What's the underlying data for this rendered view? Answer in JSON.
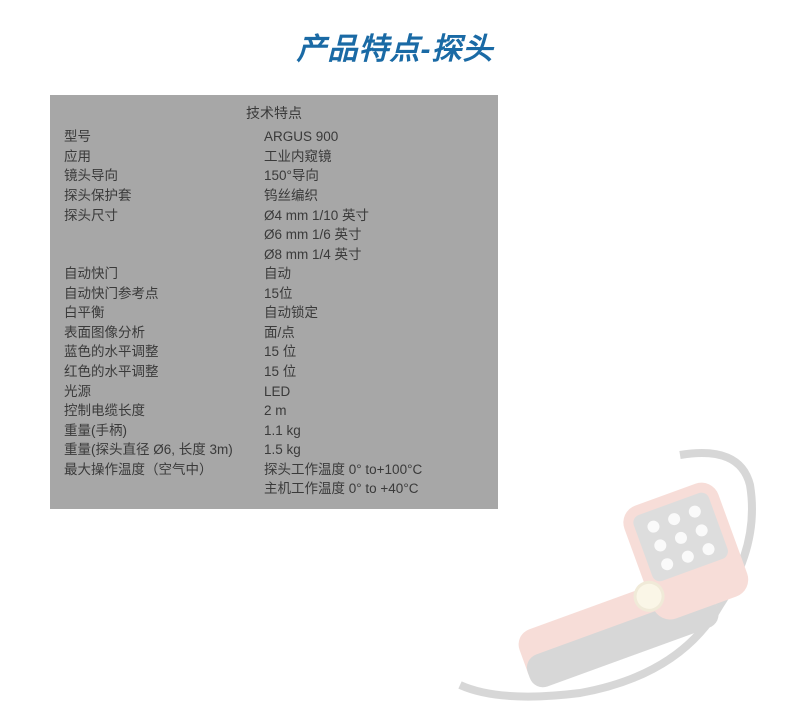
{
  "page_title": "产品特点-探头",
  "spec_title": "技术特点",
  "colors": {
    "title": "#1a6aa5",
    "box_bg": "#a7a7a7",
    "text": "#3a3a3a",
    "page_bg": "#ffffff"
  },
  "specs": [
    {
      "label": "型号",
      "value": "ARGUS 900"
    },
    {
      "label": "应用",
      "value": "工业内窥镜"
    },
    {
      "label": "镜头导向",
      "value": "150°导向"
    },
    {
      "label": "探头保护套",
      "value": "钨丝编织"
    },
    {
      "label": "探头尺寸",
      "value": "Ø4 mm 1/10 英寸"
    },
    {
      "label": "",
      "value": "Ø6 mm 1/6 英寸"
    },
    {
      "label": "",
      "value": "Ø8 mm 1/4 英寸"
    },
    {
      "label": "自动快门",
      "value": "自动"
    },
    {
      "label": "自动快门参考点",
      "value": "15位"
    },
    {
      "label": "白平衡",
      "value": "自动锁定"
    },
    {
      "label": "表面图像分析",
      "value": "面/点"
    },
    {
      "label": "蓝色的水平调整",
      "value": "15 位"
    },
    {
      "label": "红色的水平调整",
      "value": "15 位"
    },
    {
      "label": "光源",
      "value": "LED"
    },
    {
      "label": "控制电缆长度",
      "value": "2 m"
    },
    {
      "label": "重量(手柄)",
      "value": "1.1 kg"
    },
    {
      "label": "重量(探头直径 Ø6, 长度 3m)",
      "value": "1.5 kg"
    },
    {
      "label": "最大操作温度（空气中）",
      "value": "探头工作温度 0° to+100°C"
    },
    {
      "label": "",
      "value": "主机工作温度 0° to +40°C"
    }
  ],
  "device_illustration": {
    "body_color": "#d84a2b",
    "screen_color": "#2a2a2a",
    "button_color": "#e8e8e8",
    "cable_color": "#2a2a2a",
    "opacity": 0.18
  }
}
